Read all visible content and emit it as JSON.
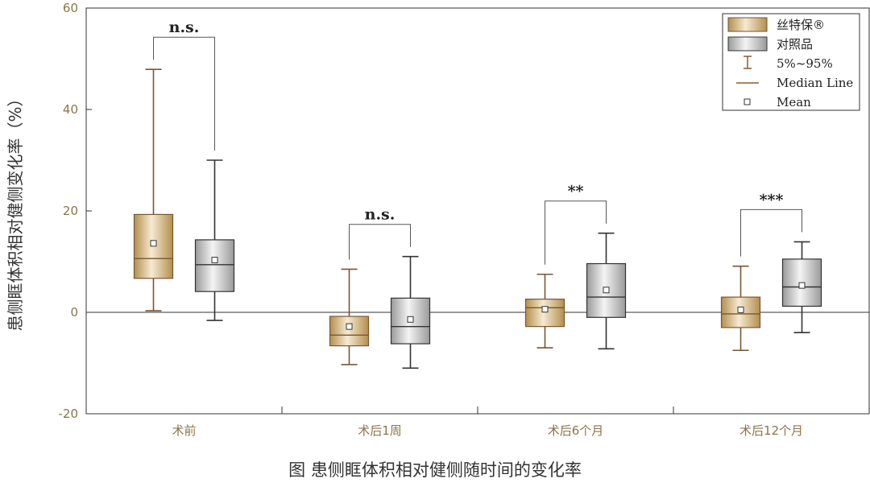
{
  "chart_data": {
    "type": "box",
    "title": "",
    "ylabel": "患侧眶体积相对健侧变化率（%）",
    "ylim": [
      -20,
      60
    ],
    "yticks": [
      "-20",
      "0",
      "20",
      "40",
      "60"
    ],
    "categories": [
      "术前",
      "术后1周",
      "术后6个月",
      "术后12个月"
    ],
    "series": [
      {
        "name": "丝特保®",
        "color": "#c5a46a",
        "boxes": [
          {
            "whisker_low": 0.3,
            "q1": 6.7,
            "median": 10.6,
            "q3": 19.3,
            "whisker_high": 47.9,
            "mean": 13.6
          },
          {
            "whisker_low": -10.3,
            "q1": -6.6,
            "median": -4.5,
            "q3": -0.8,
            "whisker_high": 8.5,
            "mean": -2.8
          },
          {
            "whisker_low": -7.0,
            "q1": -2.8,
            "median": 0.9,
            "q3": 2.6,
            "whisker_high": 7.5,
            "mean": 0.6
          },
          {
            "whisker_low": -7.5,
            "q1": -3.0,
            "median": -0.3,
            "q3": 3.0,
            "whisker_high": 9.1,
            "mean": 0.5
          }
        ]
      },
      {
        "name": "对照品",
        "color": "#b4b4b4",
        "boxes": [
          {
            "whisker_low": -1.6,
            "q1": 4.1,
            "median": 9.4,
            "q3": 14.3,
            "whisker_high": 30.0,
            "mean": 10.3
          },
          {
            "whisker_low": -11.0,
            "q1": -6.2,
            "median": -2.8,
            "q3": 2.8,
            "whisker_high": 11.0,
            "mean": -1.4
          },
          {
            "whisker_low": -7.2,
            "q1": -1.0,
            "median": 3.0,
            "q3": 9.6,
            "whisker_high": 15.6,
            "mean": 4.4
          },
          {
            "whisker_low": -4.0,
            "q1": 1.2,
            "median": 5.0,
            "q3": 10.5,
            "whisker_high": 13.9,
            "mean": 5.3
          }
        ]
      }
    ],
    "significance": [
      "n.s.",
      "n.s.",
      "**",
      "***"
    ],
    "legend": {
      "position": "top-right",
      "whisker_label": "5%~95%",
      "median_label": "Median Line",
      "mean_label": "Mean"
    },
    "reference_line": 0,
    "grid": false
  },
  "caption": "图  患侧眶体积相对健侧随时间的变化率"
}
